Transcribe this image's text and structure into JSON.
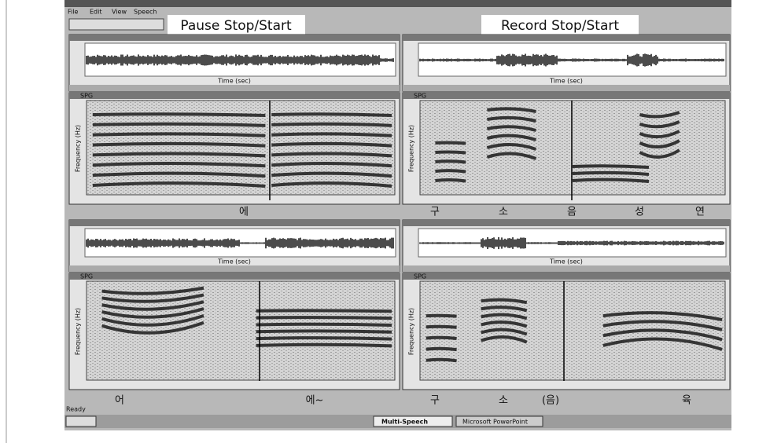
{
  "window": {
    "menu": [
      "File",
      "Edit",
      "View",
      "Speech"
    ],
    "overlay_labels": [
      "Pause Stop/Start",
      "Record Stop/Start"
    ]
  },
  "panels": {
    "spectrogram_title": "SPG",
    "x_axis_label": "Time (sec)",
    "y_axis_label": "Frequency (Hz)"
  },
  "captions": {
    "top_left": [
      "에"
    ],
    "top_right": [
      "구",
      "소",
      "음",
      "성",
      "연"
    ],
    "bottom_left": [
      "어",
      "에~"
    ],
    "bottom_right": [
      "구",
      "소",
      "(음)",
      "육"
    ]
  },
  "status": "Ready",
  "taskbar": [
    "Multi-Speech",
    "Microsoft PowerPoint"
  ]
}
